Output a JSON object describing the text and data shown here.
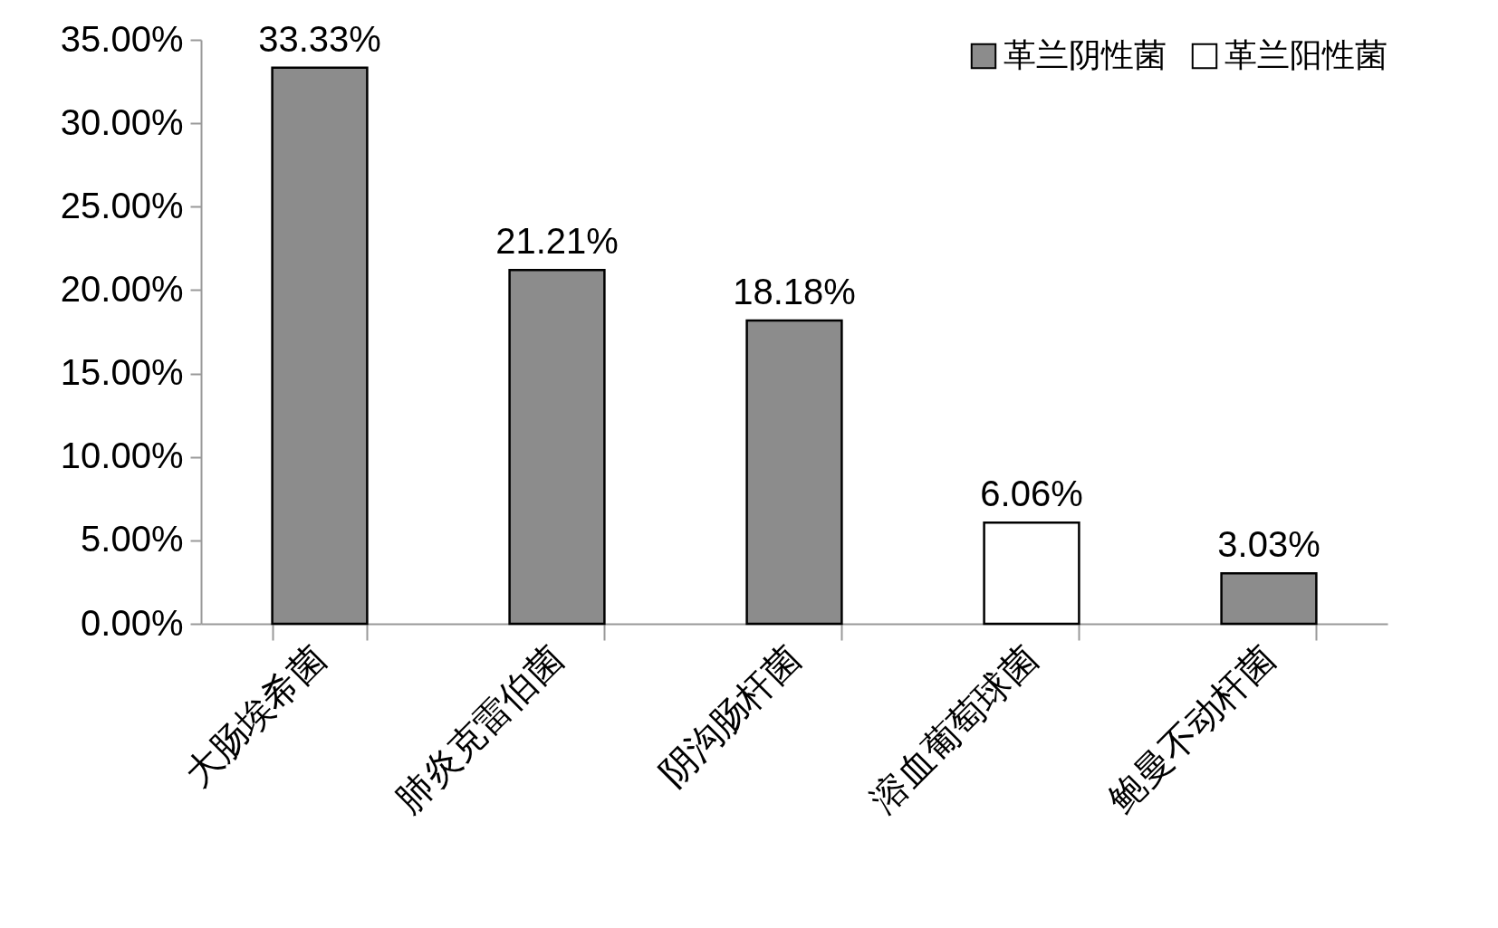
{
  "chart_data": {
    "type": "bar",
    "categories": [
      "大肠埃希菌",
      "肺炎克雷伯菌",
      "阴沟肠杆菌",
      "溶血葡萄球菌",
      "鲍曼不动杆菌"
    ],
    "series": [
      {
        "name": "革兰阴性菌",
        "color": "#8c8c8c",
        "values": [
          33.33,
          21.21,
          18.18,
          null,
          3.03
        ],
        "value_labels": [
          "33.33%",
          "21.21%",
          "18.18%",
          null,
          "3.03%"
        ]
      },
      {
        "name": "革兰阳性菌",
        "color": "#ffffff",
        "values": [
          null,
          null,
          null,
          6.06,
          null
        ],
        "value_labels": [
          null,
          null,
          null,
          "6.06%",
          null
        ]
      }
    ],
    "ylim": [
      0,
      35
    ],
    "yticks": [
      {
        "value": 0,
        "label": "0.00%"
      },
      {
        "value": 5,
        "label": "5.00%"
      },
      {
        "value": 10,
        "label": "10.00%"
      },
      {
        "value": 15,
        "label": "15.00%"
      },
      {
        "value": 20,
        "label": "20.00%"
      },
      {
        "value": 25,
        "label": "25.00%"
      },
      {
        "value": 30,
        "label": "30.00%"
      },
      {
        "value": 35,
        "label": "35.00%"
      }
    ],
    "grid": false,
    "legend": "top right"
  }
}
